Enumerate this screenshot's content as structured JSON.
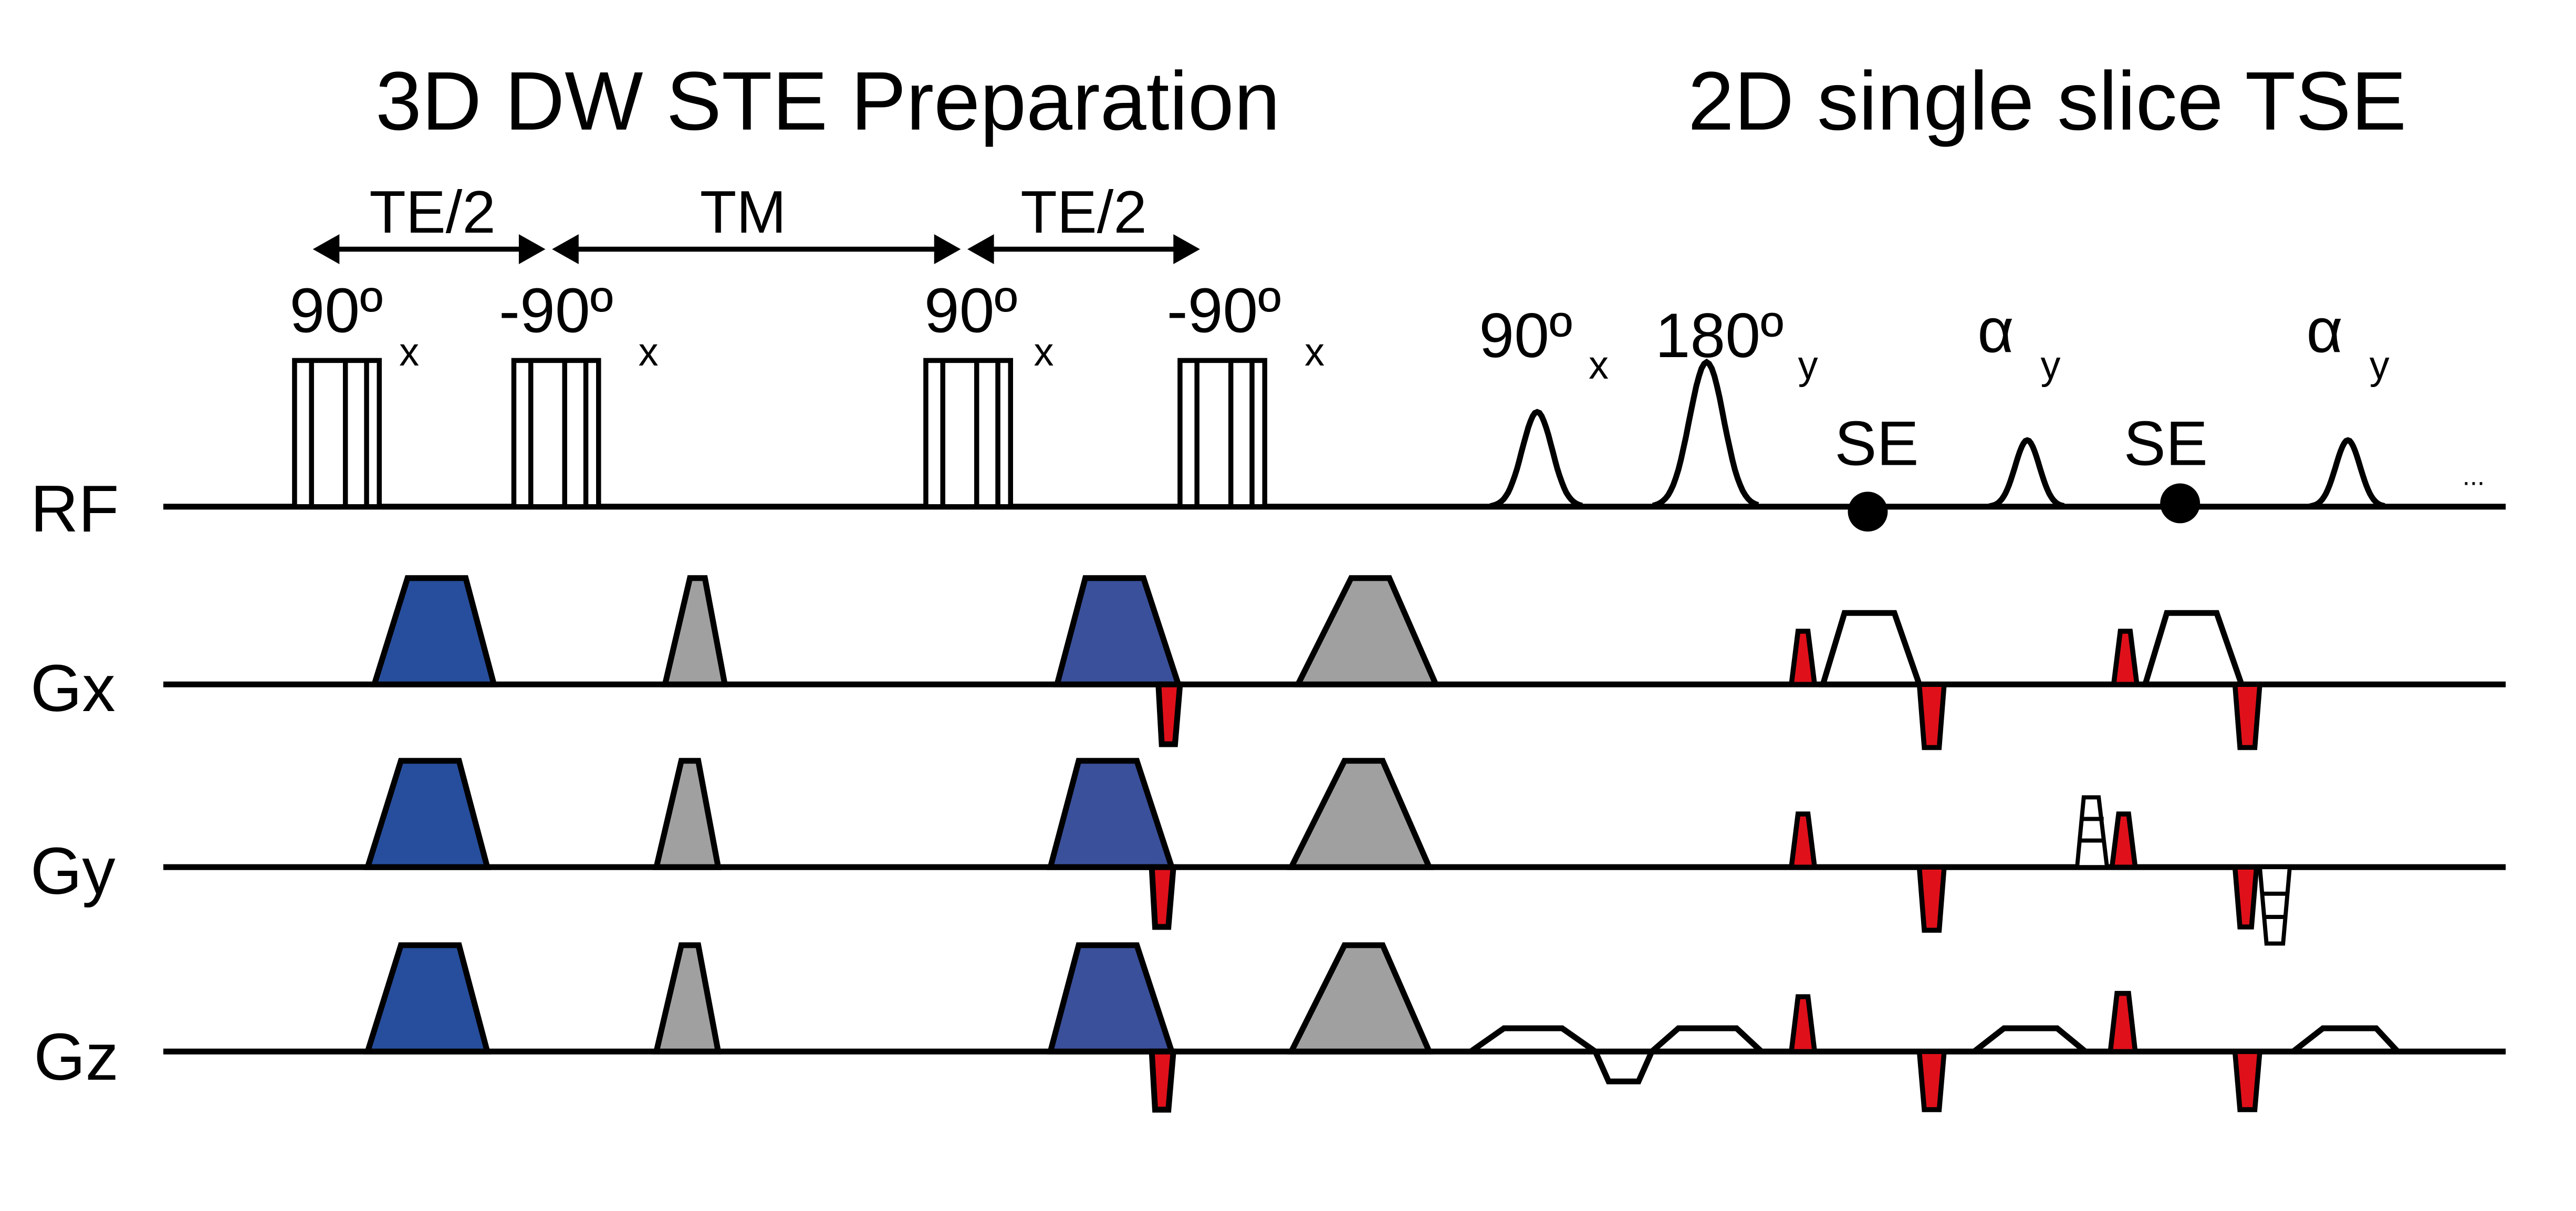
{
  "titles": {
    "left": "3D DW STE Preparation",
    "right": "2D single slice TSE"
  },
  "timing": {
    "te_half_1": "TE/2",
    "tm": "TM",
    "te_half_2": "TE/2"
  },
  "axes": {
    "rf": "RF",
    "gx": "Gx",
    "gy": "Gy",
    "gz": "Gz"
  },
  "rf_labels": {
    "p1": {
      "main": "90º",
      "sub": "x"
    },
    "p2": {
      "main": "-90º",
      "sub": "x"
    },
    "p3": {
      "main": "90º",
      "sub": "x"
    },
    "p4": {
      "main": "-90º",
      "sub": "x"
    },
    "tse90": {
      "main": "90º",
      "sub": "x"
    },
    "tse180": {
      "main": "180º",
      "sub": "y"
    },
    "alpha1": {
      "main": "α",
      "sub": "y"
    },
    "alpha2": {
      "main": "α",
      "sub": "y"
    },
    "se1": "SE",
    "se2": "SE",
    "ellipsis": "..."
  },
  "colors": {
    "diffusion": "#274e9c",
    "crusher": "#a0a0a0",
    "spoiler": "#e0101a",
    "line": "#000000"
  }
}
